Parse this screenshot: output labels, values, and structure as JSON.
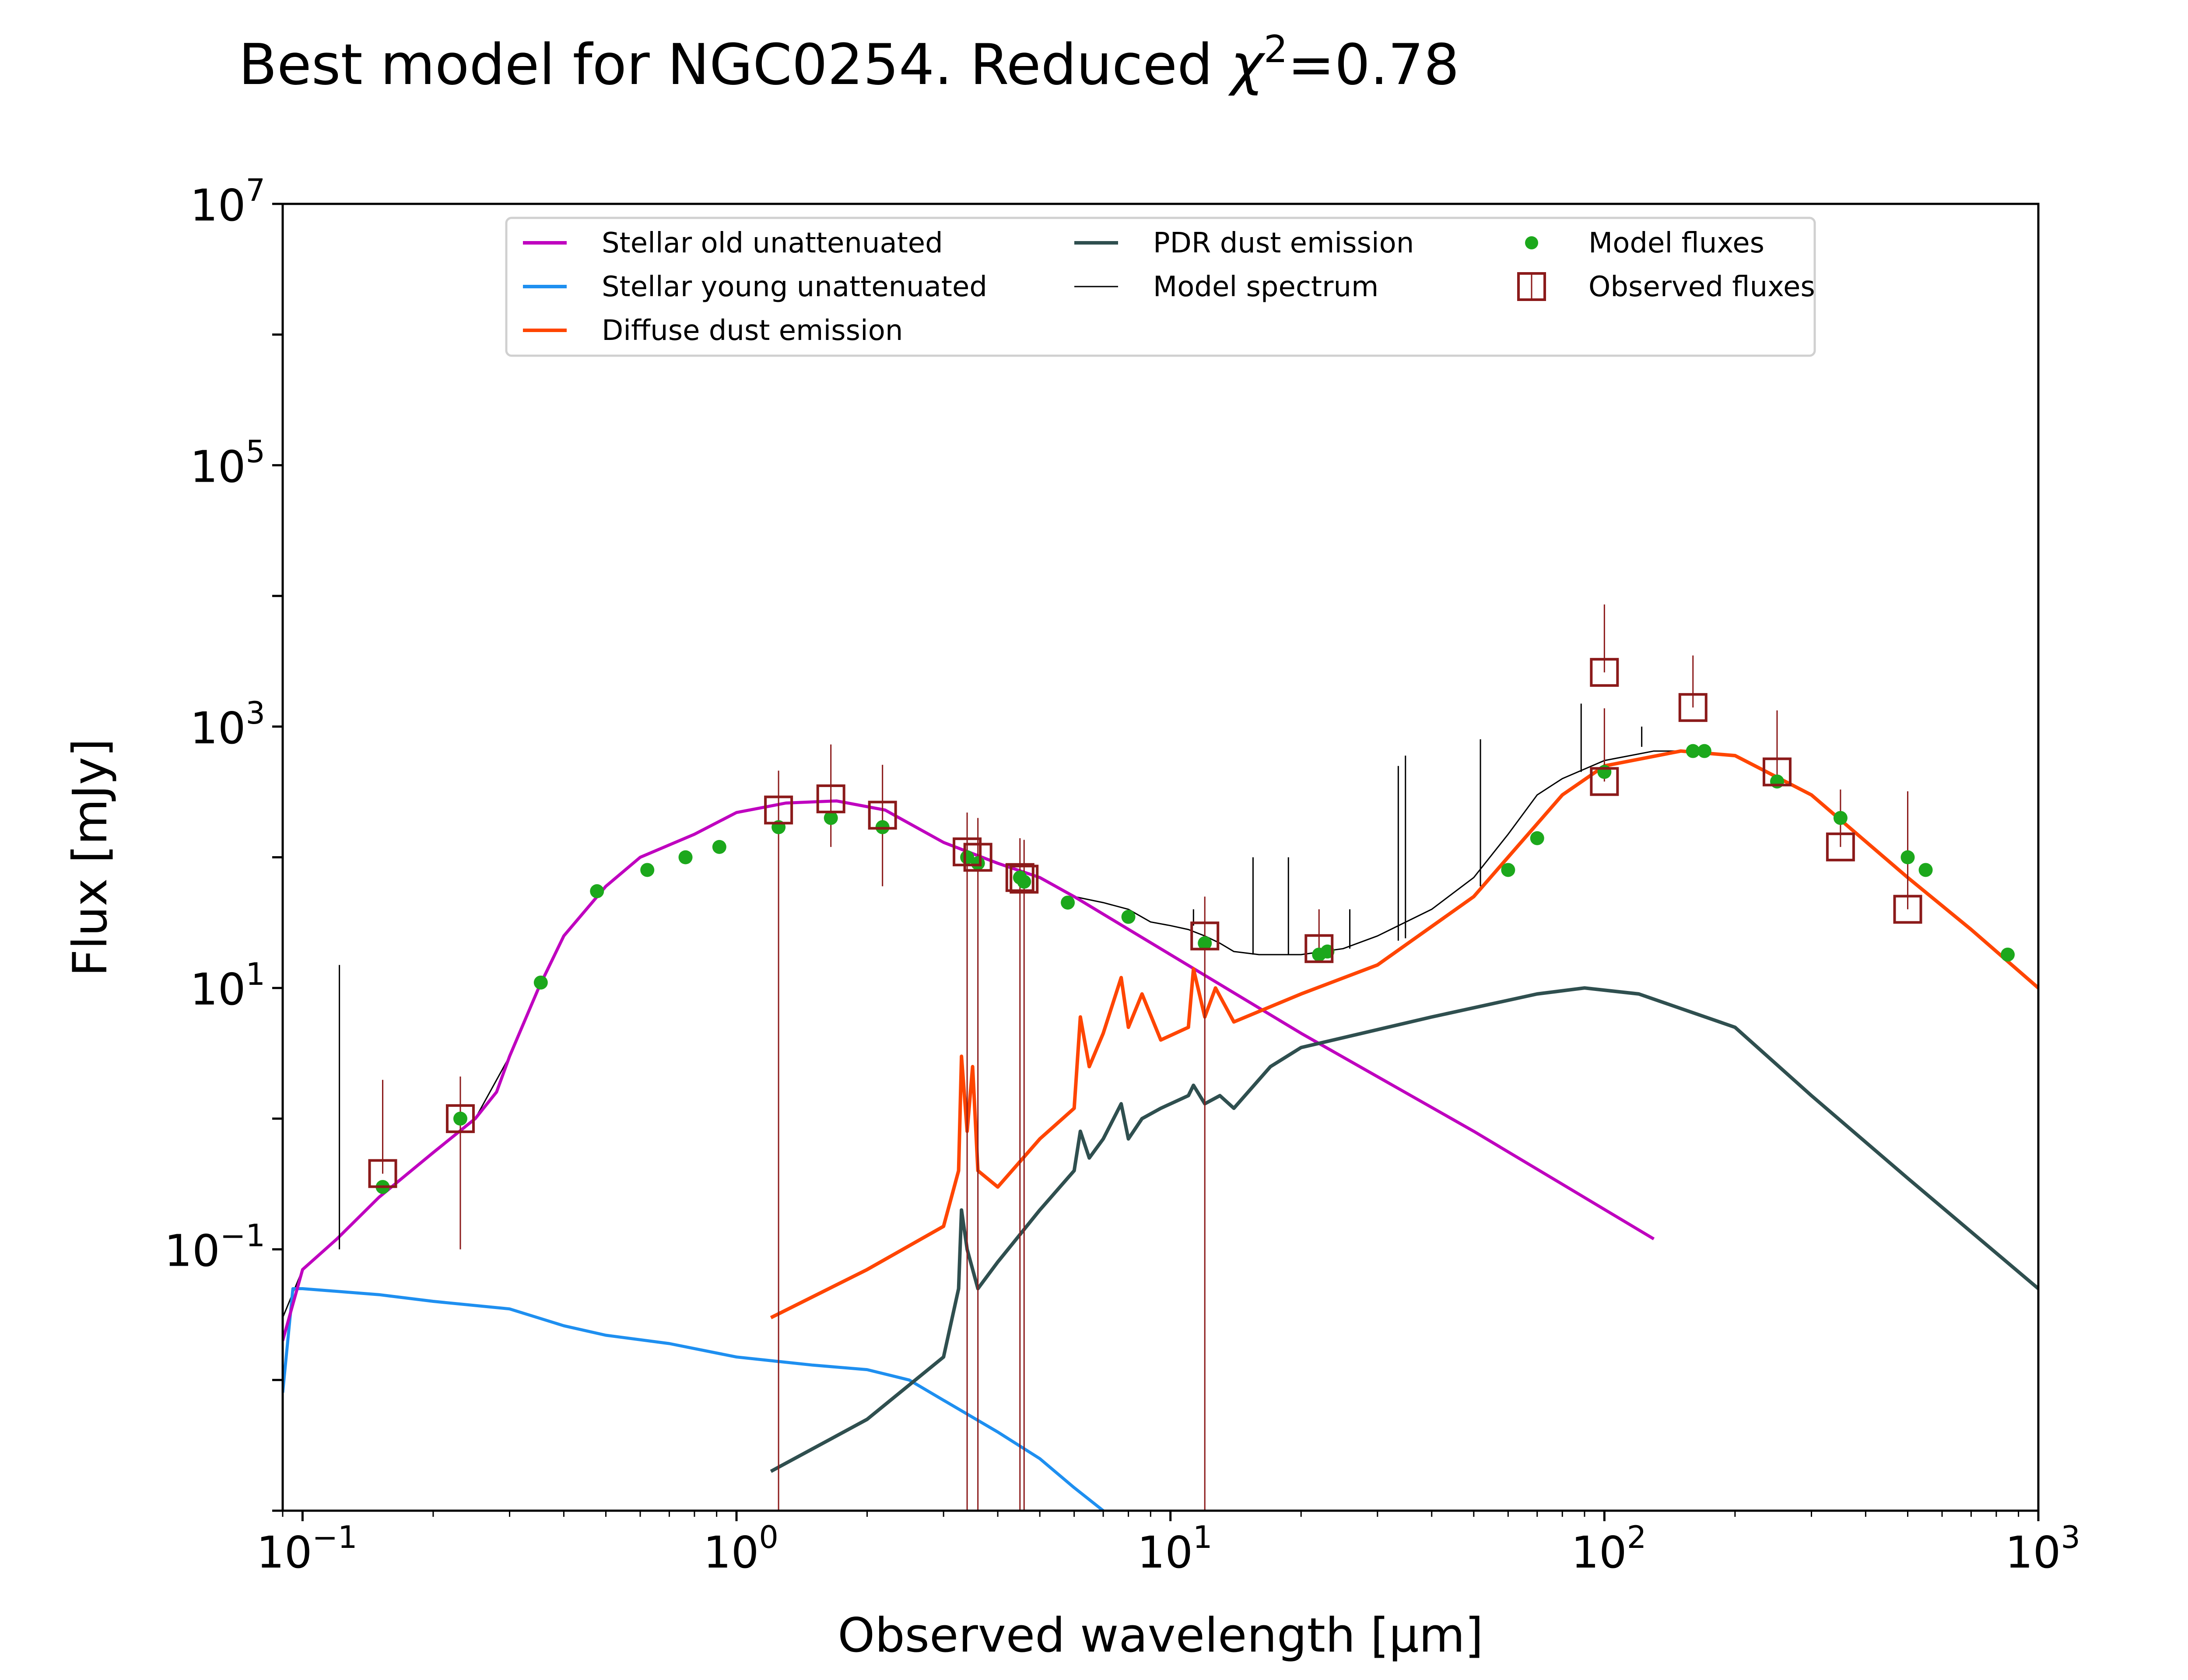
{
  "chart_data": {
    "type": "line",
    "title_prefix": "Best model for NGC0254. Reduced ",
    "title_chi": "χ",
    "title_chi_exp": "2",
    "title_suffix": "=0.78",
    "xlabel": "Observed wavelength [μm]",
    "ylabel": "Flux [mJy]",
    "x_scale": "log",
    "y_scale": "log",
    "xlim": [
      0.09,
      1000
    ],
    "ylim": [
      0.001,
      10000000
    ],
    "x_ticks": [
      {
        "base": "10",
        "exp": "−1",
        "value": 0.1
      },
      {
        "base": "10",
        "exp": "0",
        "value": 1
      },
      {
        "base": "10",
        "exp": "1",
        "value": 10
      },
      {
        "base": "10",
        "exp": "2",
        "value": 100
      },
      {
        "base": "10",
        "exp": "3",
        "value": 1000
      }
    ],
    "y_ticks": [
      {
        "base": "10",
        "exp": "−1",
        "value": 0.1
      },
      {
        "base": "10",
        "exp": "1",
        "value": 10
      },
      {
        "base": "10",
        "exp": "3",
        "value": 1000
      },
      {
        "base": "10",
        "exp": "5",
        "value": 100000
      },
      {
        "base": "10",
        "exp": "7",
        "value": 10000000
      }
    ],
    "legend_position": "upper-center",
    "legend": [
      {
        "label": "Stellar old unattenuated",
        "kind": "line",
        "color": "#bf00bf"
      },
      {
        "label": "Stellar young unattenuated",
        "kind": "line",
        "color": "#1e8ff0"
      },
      {
        "label": "Diffuse dust emission",
        "kind": "line",
        "color": "#ff4500"
      },
      {
        "label": "PDR dust emission",
        "kind": "line",
        "color": "#2f4f4f"
      },
      {
        "label": "Model spectrum",
        "kind": "thinline",
        "color": "#000000"
      },
      {
        "label": "Model fluxes",
        "kind": "dot",
        "color": "#1ca81c"
      },
      {
        "label": "Observed fluxes",
        "kind": "square",
        "color": "#8b1a1a"
      }
    ],
    "series": [
      {
        "name": "Stellar old unattenuated",
        "color": "#bf00bf",
        "x": [
          0.09,
          0.1,
          0.12,
          0.15,
          0.2,
          0.25,
          0.28,
          0.3,
          0.35,
          0.4,
          0.5,
          0.6,
          0.8,
          1.0,
          1.3,
          1.7,
          2.2,
          3,
          4,
          5,
          6,
          10,
          20,
          50,
          130
        ],
        "y": [
          0.02,
          0.07,
          0.12,
          0.25,
          0.55,
          1.0,
          1.6,
          3,
          10,
          25,
          60,
          100,
          150,
          220,
          260,
          270,
          230,
          130,
          90,
          70,
          50,
          18,
          4.5,
          0.8,
          0.12
        ]
      },
      {
        "name": "Stellar young unattenuated",
        "color": "#1e8ff0",
        "x": [
          0.09,
          0.095,
          0.1,
          0.15,
          0.2,
          0.3,
          0.4,
          0.5,
          0.7,
          1.0,
          1.5,
          2.0,
          2.5,
          3,
          4,
          5,
          6,
          7
        ],
        "y": [
          0.008,
          0.05,
          0.05,
          0.045,
          0.04,
          0.035,
          0.026,
          0.022,
          0.019,
          0.015,
          0.013,
          0.012,
          0.01,
          0.007,
          0.004,
          0.0025,
          0.0015,
          0.001
        ]
      },
      {
        "name": "Diffuse dust emission",
        "color": "#ff4500",
        "x": [
          1.2,
          2.0,
          3.0,
          3.25,
          3.3,
          3.4,
          3.5,
          3.6,
          4.0,
          5.0,
          6.0,
          6.2,
          6.5,
          7.0,
          7.7,
          8.0,
          8.6,
          9.5,
          11.0,
          11.3,
          12.0,
          12.7,
          14.0,
          20,
          30,
          50,
          80,
          100,
          150,
          200,
          300,
          500,
          700,
          1000
        ],
        "y": [
          0.03,
          0.07,
          0.15,
          0.4,
          3,
          0.8,
          2.5,
          0.4,
          0.3,
          0.7,
          1.2,
          6,
          2.5,
          4.5,
          12,
          5,
          9,
          4,
          5,
          14,
          6,
          10,
          5.5,
          9,
          15,
          50,
          300,
          500,
          650,
          600,
          300,
          70,
          28,
          10
        ]
      },
      {
        "name": "PDR dust emission",
        "color": "#2f4f4f",
        "x": [
          1.2,
          2.0,
          3.0,
          3.25,
          3.3,
          3.4,
          3.6,
          4.0,
          5.0,
          6.0,
          6.2,
          6.5,
          7.0,
          7.7,
          8.0,
          8.6,
          9.5,
          11.0,
          11.3,
          12.0,
          13.0,
          14.0,
          17,
          20,
          40,
          70,
          90,
          120,
          200,
          300,
          500,
          1000
        ],
        "y": [
          0.002,
          0.005,
          0.015,
          0.05,
          0.2,
          0.1,
          0.05,
          0.08,
          0.2,
          0.4,
          0.8,
          0.5,
          0.7,
          1.3,
          0.7,
          1.0,
          1.2,
          1.5,
          1.8,
          1.3,
          1.5,
          1.2,
          2.5,
          3.5,
          6,
          9,
          10,
          9,
          5,
          1.5,
          0.35,
          0.05
        ]
      },
      {
        "name": "Model spectrum",
        "color": "#000000",
        "x": [
          0.09,
          0.1,
          0.12,
          0.15,
          0.2,
          0.25,
          0.3,
          0.35,
          0.4,
          0.5,
          0.6,
          0.8,
          1.0,
          1.3,
          1.7,
          2.2,
          3,
          4,
          5,
          6,
          7,
          8,
          9,
          10,
          11,
          12,
          13,
          14,
          16,
          18,
          20,
          25,
          30,
          40,
          50,
          60,
          70,
          80,
          100,
          130,
          150,
          200,
          300,
          500,
          700,
          1000
        ],
        "y": [
          0.03,
          0.07,
          0.12,
          0.25,
          0.55,
          1.0,
          3,
          10,
          25,
          60,
          100,
          150,
          220,
          260,
          270,
          230,
          130,
          90,
          70,
          50,
          45,
          40,
          32,
          30,
          28,
          25,
          22,
          19,
          18,
          18,
          18,
          20,
          25,
          40,
          70,
          150,
          300,
          400,
          550,
          650,
          650,
          600,
          300,
          70,
          28,
          10
        ]
      }
    ],
    "spectrum_lines": [
      {
        "x": 0.1216,
        "y0": 0.1,
        "y1": 15
      },
      {
        "x": 11.3,
        "y0": 30,
        "y1": 40
      },
      {
        "x": 15.5,
        "y0": 18,
        "y1": 100
      },
      {
        "x": 18.7,
        "y0": 18,
        "y1": 100
      },
      {
        "x": 25.9,
        "y0": 20,
        "y1": 40
      },
      {
        "x": 33.5,
        "y0": 23,
        "y1": 500
      },
      {
        "x": 34.8,
        "y0": 24,
        "y1": 600
      },
      {
        "x": 51.8,
        "y0": 60,
        "y1": 800
      },
      {
        "x": 88.4,
        "y0": 450,
        "y1": 1500
      },
      {
        "x": 121.9,
        "y0": 700,
        "y1": 1000
      }
    ],
    "model_fluxes": {
      "x": [
        0.153,
        0.231,
        0.354,
        0.477,
        0.623,
        0.763,
        0.913,
        1.25,
        1.65,
        2.17,
        3.4,
        3.6,
        4.5,
        4.6,
        5.8,
        8.0,
        12.0,
        22.0,
        23.0,
        60,
        70,
        100,
        160,
        170,
        250,
        350,
        500,
        550,
        850
      ],
      "y": [
        0.3,
        1.0,
        11,
        55,
        80,
        100,
        120,
        170,
        200,
        170,
        100,
        90,
        70,
        65,
        45,
        35,
        22,
        18,
        19,
        80,
        140,
        450,
        650,
        650,
        380,
        200,
        100,
        80,
        18
      ]
    },
    "observed_fluxes": {
      "x": [
        0.153,
        0.231,
        1.25,
        1.65,
        2.17,
        3.4,
        3.6,
        4.5,
        4.6,
        12.0,
        22.0,
        100,
        100,
        160,
        250,
        350,
        500
      ],
      "y": [
        0.38,
        1.0,
        230,
        280,
        210,
        110,
        100,
        70,
        68,
        25,
        20,
        2600,
        380,
        1400,
        450,
        120,
        40
      ],
      "err_low": [
        0.001,
        0.9,
        230,
        160,
        150,
        110,
        100,
        70,
        68,
        25,
        0.001,
        0.001,
        0.001,
        0.001,
        85,
        0.001,
        0.001
      ],
      "err_high": [
        1.6,
        1.1,
        230,
        450,
        300,
        110,
        100,
        70,
        68,
        25,
        20,
        6000,
        1000,
        2100,
        880,
        210,
        280
      ]
    }
  }
}
